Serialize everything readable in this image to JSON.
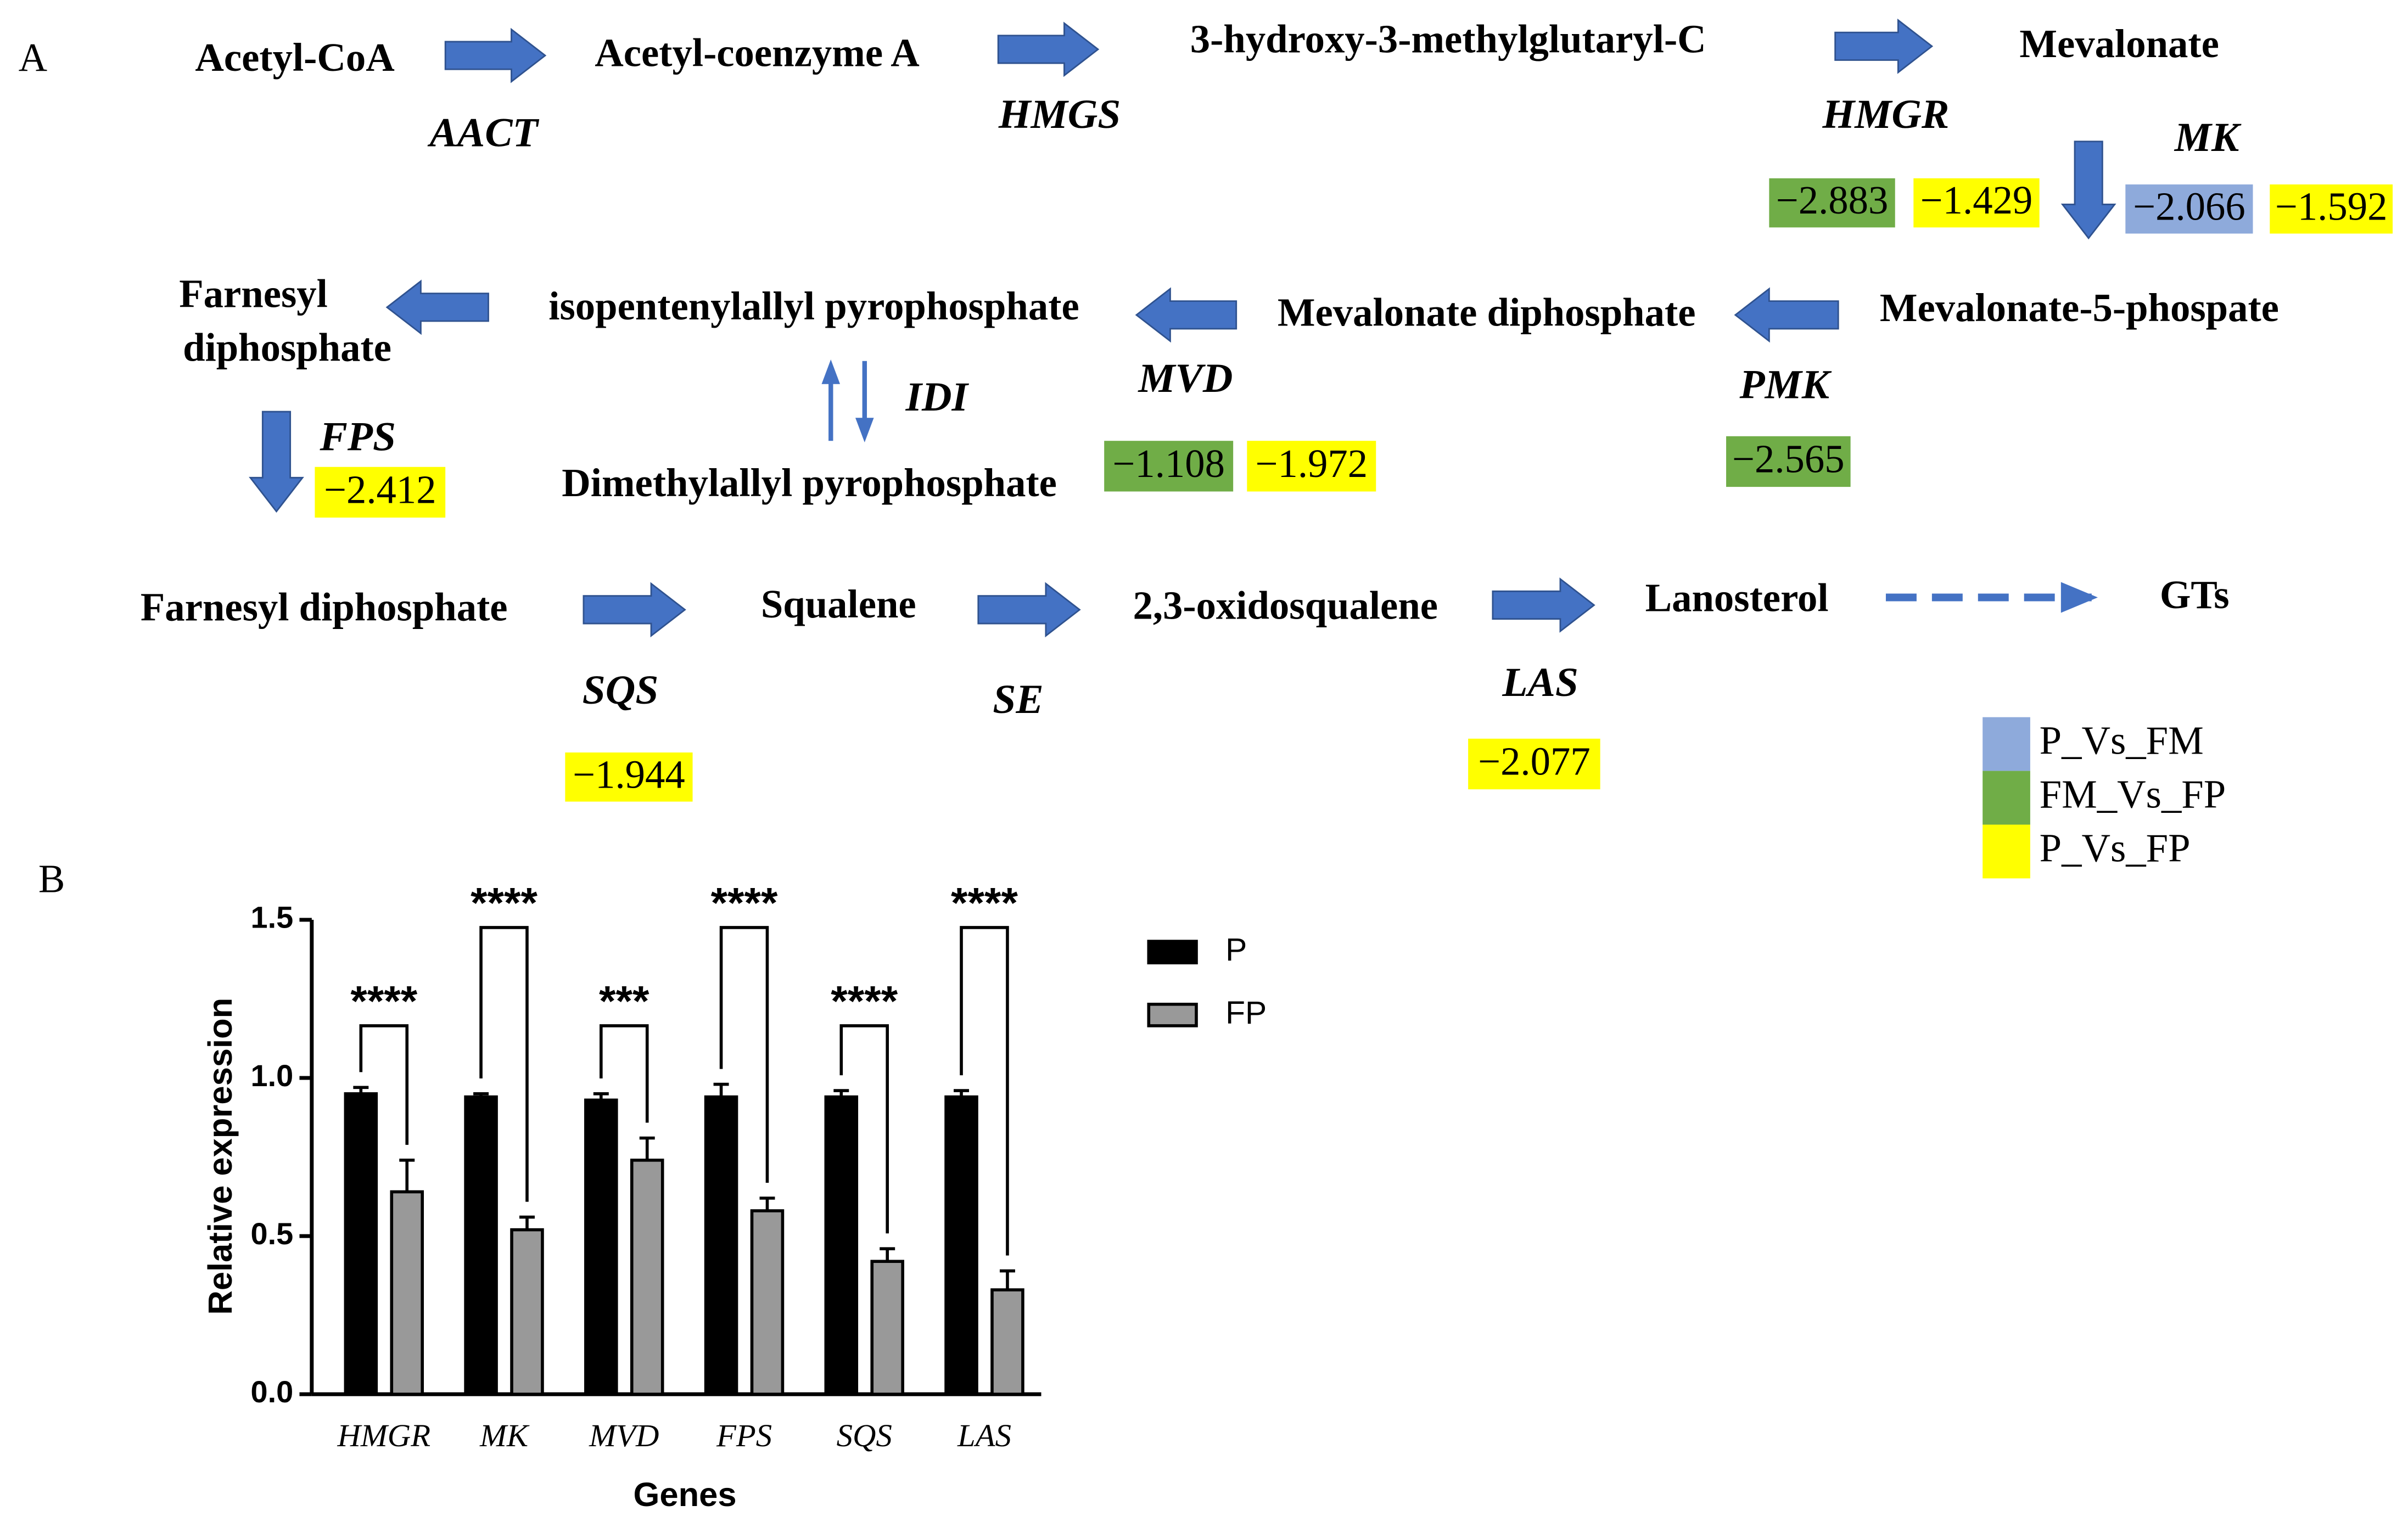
{
  "diagram": {
    "panel_labels": [
      "A",
      "B"
    ],
    "nodes": [
      "Acetyl-CoA",
      "Acetyl-coenzyme A",
      "3-hydroxy-3-methylglutaryl-C",
      "Mevalonate",
      "Mevalonate-5-phospate",
      "Mevalonate diphosphate",
      "isopentenylallyl pyrophosphate",
      [
        "Farnesyl",
        "diphosphate"
      ],
      "Dimethylallyl pyrophosphate",
      "Farnesyl diphosphate",
      "Squalene",
      "2,3-oxidosqualene",
      "Lanosterol",
      "GTs"
    ],
    "enzymes": [
      {
        "name": "AACT"
      },
      {
        "name": "HMGS"
      },
      {
        "name": "HMGR",
        "values": [
          {
            "text": "−2.883",
            "color": "#70ad47"
          },
          {
            "text": "−1.429",
            "color": "#ffff00"
          }
        ]
      },
      {
        "name": "MK",
        "values": [
          {
            "text": "−2.066",
            "color": "#8eaadb"
          },
          {
            "text": "−1.592",
            "color": "#ffff00"
          }
        ]
      },
      {
        "name": "MVD",
        "values": [
          {
            "text": "−1.108",
            "color": "#70ad47"
          },
          {
            "text": "−1.972",
            "color": "#ffff00"
          }
        ]
      },
      {
        "name": "PMK",
        "values": [
          {
            "text": "−2.565",
            "color": "#70ad47"
          }
        ]
      },
      {
        "name": "IDI"
      },
      {
        "name": "FPS",
        "values": [
          {
            "text": "−2.412",
            "color": "#ffff00"
          }
        ]
      },
      {
        "name": "SQS",
        "values": [
          {
            "text": "−1.944",
            "color": "#ffff00"
          }
        ]
      },
      {
        "name": "SE"
      },
      {
        "name": "LAS",
        "values": [
          {
            "text": "−2.077",
            "color": "#ffff00"
          }
        ]
      }
    ],
    "legend": [
      {
        "label": "P_Vs_FM",
        "color": "#8eaadb"
      },
      {
        "label": "FM_Vs_FP",
        "color": "#70ad47"
      },
      {
        "label": "P_Vs_FP",
        "color": "#ffff00"
      }
    ]
  },
  "chart_data": {
    "type": "bar",
    "x_label": "Genes",
    "y_label": "Relative expression",
    "categories": [
      "HMGR",
      "MK",
      "MVD",
      "FPS",
      "SQS",
      "LAS"
    ],
    "series": [
      {
        "name": "P",
        "color": "#000000",
        "values": [
          0.95,
          0.94,
          0.93,
          0.94,
          0.94,
          0.94
        ],
        "errors": [
          0.02,
          0.01,
          0.02,
          0.04,
          0.02,
          0.02
        ]
      },
      {
        "name": "FP",
        "color": "#999999",
        "values": [
          0.64,
          0.52,
          0.74,
          0.58,
          0.42,
          0.33
        ],
        "errors": [
          0.1,
          0.04,
          0.07,
          0.04,
          0.04,
          0.06
        ]
      }
    ],
    "significance": [
      "****",
      "****",
      "***",
      "****",
      "****",
      "****"
    ],
    "ylim": [
      0,
      1.5
    ],
    "yticks": [
      {
        "value": 0,
        "label": "0.0"
      },
      0.5,
      {
        "value": 1,
        "label": "1.0"
      },
      {
        "value": 1.5,
        "label": "1.5"
      }
    ],
    "legend": "upper right"
  }
}
